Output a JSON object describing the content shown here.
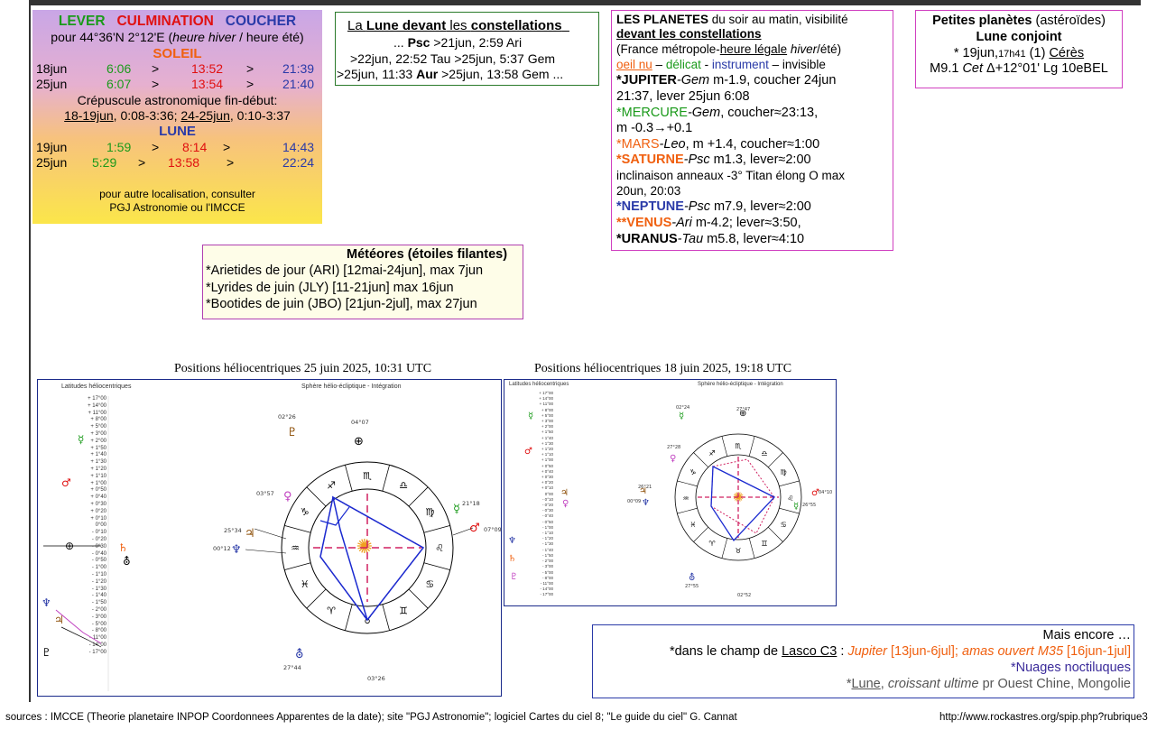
{
  "sunmoon": {
    "hdr_lever": "LEVER",
    "hdr_culm": "CULMINATION",
    "hdr_coucher": "COUCHER",
    "location_a": "pour 44°36'N  2°12'E (",
    "location_b": "heure hiver",
    "location_c": " / heure été)",
    "soleil_title": "SOLEIL",
    "soleil_rows": [
      {
        "date": "18jun",
        "lever": "6:06",
        "s1": ">",
        "culm": "13:52",
        "s2": ">",
        "coucher": "21:39"
      },
      {
        "date": "25jun",
        "lever": "6:07",
        "s1": ">",
        "culm": "13:54",
        "s2": ">",
        "coucher": "21:40"
      }
    ],
    "crep_title": "Crépuscule astronomique fin-début:",
    "crep_a": "18-19jun",
    "crep_b": ", 0:08-3:36; ",
    "crep_c": "24-25jun",
    "crep_d": ", 0:10-3:37",
    "lune_title": "LUNE",
    "lune_rows": [
      {
        "date": "19jun",
        "lever": "1:59",
        "s1": ">",
        "culm": "8:14",
        "s2": ">",
        "coucher": "14:43"
      },
      {
        "date": "25jun",
        "lever": "5:29",
        "s1": ">",
        "culm": "13:58",
        "s2": ">",
        "coucher": "22:24"
      }
    ],
    "note1": "pour autre localisation, consulter",
    "note2": "PGJ Astronomie ou l'IMCCE"
  },
  "moon_const": {
    "title_a": "La ",
    "title_b": "Lune devant",
    "title_c": " les ",
    "title_d": "constellations",
    "line1_a": "... ",
    "line1_b": "Psc",
    "line1_c": " >21jun, 2:59 Ari",
    "line2": ">22jun, 22:52 Tau >25jun, 5:37 Gem",
    "line3_a": ">25jun, 11:33 ",
    "line3_b": "Aur",
    "line3_c": " >25jun, 13:58 Gem ..."
  },
  "planets": {
    "title_a": "LES PLANETES",
    "title_b": " du soir au matin, visibilité",
    "title2": "devant les constellations",
    "france_a": "(France métropole-",
    "france_b": "heure légale",
    "france_c": " hiver",
    "france_d": "/été)",
    "legend_a": "oeil nu",
    "legend_b": " – ",
    "legend_c": "délicat",
    "legend_d": " - ",
    "legend_e": "instrument",
    "legend_f": " – invisible",
    "jup1_a": "*JUPITER",
    "jup1_b": "-Gem",
    "jup1_c": " m-1.9, coucher 24jun",
    "jup2": "21:37, lever 25jun 6:08",
    "mer1_a": "*MERCURE",
    "mer1_b": "-Gem",
    "mer1_c": ", coucher≈23:13,",
    "mer2": "m -0.3→+0.1",
    "mars_a": "*MARS",
    "mars_b": "-Leo",
    "mars_c": ", m +1.4,  coucher≈1:00",
    "sat_a": "*SATURNE",
    "sat_b": "-Psc",
    "sat_c": " m1.3, lever≈2:00",
    "sat2": " inclinaison anneaux -3° Titan élong O max",
    "sat3": "20un, 20:03",
    "nep_a": "*NEPTUNE",
    "nep_b": "-Psc",
    "nep_c": " m7.9, lever≈2:00",
    "ven_a": "**VENUS",
    "ven_b": "-Ari",
    "ven_c": " m-4.2; lever≈3:50,",
    "ura_a": "*URANUS",
    "ura_b": "-Tau",
    "ura_c": " m5.8, lever≈4:10"
  },
  "asteroids": {
    "title_a": "Petites planètes",
    "title_b": " (astéroïdes)",
    "title2": "Lune conjoint",
    "line1_a": "* 19jun,",
    "line1_b": "17h41",
    "line1_c": " (1) ",
    "line1_d": "Cérès",
    "line2_a": "M9.1 ",
    "line2_b": "Cet",
    "line2_c": " Δ+12°01' Lg 10eBEL"
  },
  "meteors": {
    "title": "Météores (étoiles filantes)",
    "items": [
      "*Arietides de jour (ARI) [12mai-24jun], max 7jun",
      "*Lyrides de juin (JLY) [11-21jun] max 16jun",
      "*Bootides de juin (JBO) [21jun-2jul], max 27jun"
    ]
  },
  "chart1": {
    "title": "Positions héliocentriques 25 juin 2025, 10:31 UTC",
    "left_label": "Latitudes héliocentriques",
    "right_label": "Sphère hélio-écliptique - Intégration",
    "lat_scale": [
      "+ 17°00",
      "+ 14°00",
      "+ 11°00",
      "+ 8°00",
      "+ 5°00",
      "+ 3°00",
      "+ 2°00",
      "+ 1°50",
      "+ 1°40",
      "+ 1°30",
      "+ 1°20",
      "+ 1°10",
      "+ 1°00",
      "+ 0°50",
      "+ 0°40",
      "+ 0°30",
      "+ 0°20",
      "+ 0°10",
      "0°00",
      "- 0°10",
      "- 0°20",
      "- 0°30",
      "- 0°40",
      "- 0°50",
      "- 1°00",
      "- 1°10",
      "- 1°20",
      "- 1°30",
      "- 1°40",
      "- 1°50",
      "- 2°00",
      "- 3°00",
      "- 5°00",
      "- 8°00",
      "- 11°00",
      "- 14°00",
      "- 17°00"
    ],
    "annotations": [
      "02°26",
      "04°07",
      "03°57",
      "21°18",
      "07°09",
      "25°34",
      "00°12",
      "27°44",
      "03°26"
    ]
  },
  "chart2": {
    "title": "Positions héliocentriques 18 juin 2025, 19:18 UTC",
    "left_label": "Latitudes héliocentriques",
    "right_label": "Sphère hélio-écliptique - Intégration",
    "annotations": [
      "27°47",
      "02°24",
      "27°28",
      "26°21",
      "00°09",
      "04°10",
      "26°55",
      "27°55",
      "02°52"
    ]
  },
  "more": {
    "title": "Mais encore …",
    "lasco_a": "*dans le champ de ",
    "lasco_b": "Lasco C3",
    "lasco_c": " : ",
    "lasco_d": "Jupiter",
    "lasco_e": " [13jun-6jul]; ",
    "lasco_f": "amas ouvert M35",
    "lasco_g": " [16jun-1jul]",
    "nuages": "*Nuages noctiluques",
    "lune_a": "*",
    "lune_b": "Lune",
    "lune_c": ", ",
    "lune_d": "croissant ultime",
    "lune_e": " pr Ouest Chine, Mongolie"
  },
  "footer": {
    "sources": "sources : IMCCE (Theorie planetaire INPOP Coordonnees Apparentes de la date); site \"PGJ Astronomie\"; logiciel  Cartes du ciel 8; \"Le guide du ciel\" G. Cannat",
    "url": "http://www.rockastres.org/spip.php?rubrique3"
  },
  "colors": {
    "green": "#1a9a1a",
    "red": "#e01010",
    "blue": "#2a3aa8",
    "orange": "#f06010",
    "magenta": "#d040c0"
  },
  "zodiac_glyphs": [
    "♈",
    "♉",
    "♊",
    "♋",
    "♌",
    "♍",
    "♎",
    "♏",
    "♐",
    "♑",
    "♒",
    "♓"
  ],
  "planet_glyphs": {
    "sun": "☉",
    "mercury": "☿",
    "venus": "♀",
    "earth": "⊕",
    "mars": "♂",
    "jupiter": "♃",
    "saturn": "♄",
    "uranus": "⛢",
    "neptune": "♆",
    "pluto": "♇"
  }
}
